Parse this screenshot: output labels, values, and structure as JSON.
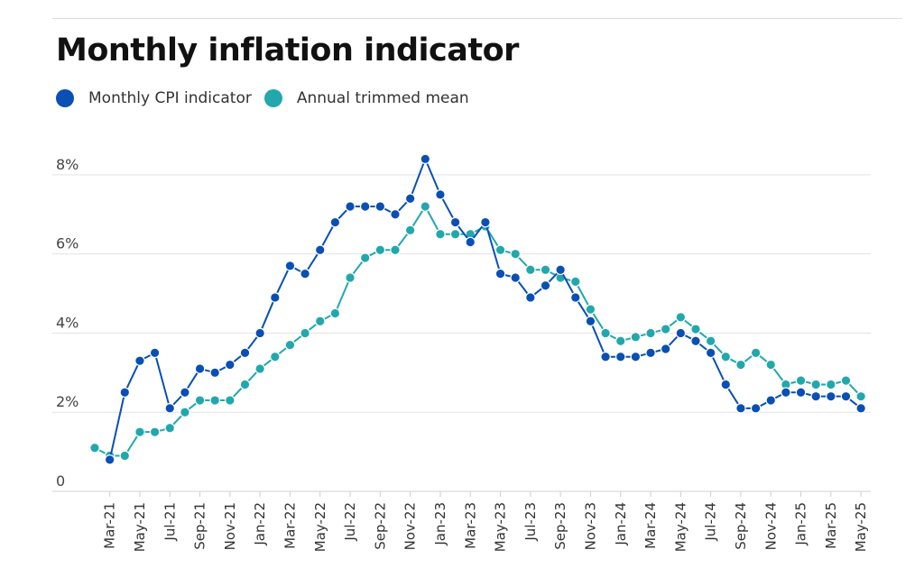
{
  "chart_data": {
    "type": "line",
    "title": "Monthly inflation indicator",
    "xlabel": "",
    "ylabel": "",
    "y_ticks": [
      {
        "value": 0,
        "label": "0"
      },
      {
        "value": 2,
        "label": "2%"
      },
      {
        "value": 4,
        "label": "4%"
      },
      {
        "value": 6,
        "label": "6%"
      },
      {
        "value": 8,
        "label": "8%"
      }
    ],
    "ylim": [
      0,
      9
    ],
    "grid": "horizontal",
    "legend_position": "top-left",
    "x_tick_labels": [
      "Mar-21",
      "May-21",
      "Jul-21",
      "Sep-21",
      "Nov-21",
      "Jan-22",
      "Mar-22",
      "May-22",
      "Jul-22",
      "Sep-22",
      "Nov-22",
      "Jan-23",
      "Mar-23",
      "May-23",
      "Jul-23",
      "Sep-23",
      "Nov-23",
      "Jan-24",
      "Mar-24",
      "May-24",
      "Jul-24",
      "Sep-24",
      "Nov-24",
      "Jan-25",
      "Mar-25",
      "May-25"
    ],
    "x": [
      "Feb-21",
      "Mar-21",
      "Apr-21",
      "May-21",
      "Jun-21",
      "Jul-21",
      "Aug-21",
      "Sep-21",
      "Oct-21",
      "Nov-21",
      "Dec-21",
      "Jan-22",
      "Feb-22",
      "Mar-22",
      "Apr-22",
      "May-22",
      "Jun-22",
      "Jul-22",
      "Aug-22",
      "Sep-22",
      "Oct-22",
      "Nov-22",
      "Dec-22",
      "Jan-23",
      "Feb-23",
      "Mar-23",
      "Apr-23",
      "May-23",
      "Jun-23",
      "Jul-23",
      "Aug-23",
      "Sep-23",
      "Oct-23",
      "Nov-23",
      "Dec-23",
      "Jan-24",
      "Feb-24",
      "Mar-24",
      "Apr-24",
      "May-24",
      "Jun-24",
      "Jul-24",
      "Aug-24",
      "Sep-24",
      "Oct-24",
      "Nov-24",
      "Dec-24",
      "Jan-25",
      "Feb-25",
      "Mar-25",
      "Apr-25",
      "May-25"
    ],
    "series": [
      {
        "name": "Monthly CPI indicator",
        "color": "#0a4fb4",
        "values": [
          null,
          0.8,
          2.5,
          3.3,
          3.5,
          2.1,
          2.5,
          3.1,
          3.0,
          3.2,
          3.5,
          4.0,
          4.9,
          5.7,
          5.5,
          6.1,
          6.8,
          7.2,
          7.2,
          7.2,
          7.0,
          7.4,
          8.4,
          7.5,
          6.8,
          6.3,
          6.8,
          5.5,
          5.4,
          4.9,
          5.2,
          5.6,
          4.9,
          4.3,
          3.4,
          3.4,
          3.4,
          3.5,
          3.6,
          4.0,
          3.8,
          3.5,
          2.7,
          2.1,
          2.1,
          2.3,
          2.5,
          2.5,
          2.4,
          2.4,
          2.4,
          2.1
        ]
      },
      {
        "name": "Annual trimmed mean",
        "color": "#22a8ac",
        "values": [
          1.1,
          0.9,
          0.9,
          1.5,
          1.5,
          1.6,
          2.0,
          2.3,
          2.3,
          2.3,
          2.7,
          3.1,
          3.4,
          3.7,
          4.0,
          4.3,
          4.5,
          5.4,
          5.9,
          6.1,
          6.1,
          6.6,
          7.2,
          6.5,
          6.5,
          6.5,
          6.7,
          6.1,
          6.0,
          5.6,
          5.6,
          5.4,
          5.3,
          4.6,
          4.0,
          3.8,
          3.9,
          4.0,
          4.1,
          4.4,
          4.1,
          3.8,
          3.4,
          3.2,
          3.5,
          3.2,
          2.7,
          2.8,
          2.7,
          2.7,
          2.8,
          2.4
        ]
      }
    ]
  }
}
